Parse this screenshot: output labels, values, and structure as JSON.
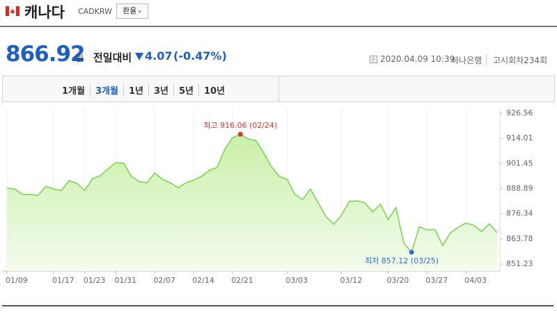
{
  "header": {
    "country": "캐나다",
    "code": "CADKRW",
    "button": "환율"
  },
  "quote": {
    "price": 866.92,
    "unit": "원",
    "change_label": "전일대비",
    "change": 4.07,
    "change_percent": "(-0.47%)",
    "datetime": "2020.04.09 10:39",
    "bank": "하나은행",
    "round": "고시회차234회"
  },
  "tabs": [
    "1개월",
    "3개월",
    "1년",
    "3년",
    "5년",
    "10년"
  ],
  "chart_data": {
    "type": "area",
    "categories": [
      "01/09",
      null,
      null,
      null,
      null,
      null,
      "01/17",
      null,
      null,
      null,
      "01/23",
      null,
      null,
      null,
      "01/31",
      null,
      null,
      null,
      null,
      "02/07",
      null,
      null,
      null,
      null,
      "02/14",
      null,
      null,
      null,
      null,
      "02/21",
      null,
      null,
      null,
      null,
      null,
      null,
      "03/03",
      null,
      null,
      null,
      null,
      null,
      null,
      "03/12",
      null,
      null,
      null,
      null,
      null,
      "03/20",
      null,
      null,
      null,
      null,
      "03/27",
      null,
      null,
      null,
      null,
      "04/03",
      null,
      null,
      null,
      null
    ],
    "values": [
      889.1,
      888.7,
      886.0,
      886.0,
      885.6,
      890.1,
      888.7,
      888.0,
      892.9,
      891.5,
      888.0,
      893.9,
      895.3,
      898.8,
      901.9,
      901.6,
      895.0,
      892.5,
      891.8,
      896.7,
      893.6,
      891.8,
      889.4,
      891.8,
      893.2,
      895.0,
      898.1,
      899.5,
      908.5,
      914.4,
      916.06,
      913.7,
      913.0,
      906.8,
      899.8,
      895.0,
      893.6,
      886.0,
      883.5,
      888.7,
      881.8,
      874.9,
      871.1,
      875.6,
      882.5,
      882.8,
      881.8,
      877.3,
      881.1,
      873.5,
      879.4,
      861.7,
      857.12,
      869.9,
      868.2,
      868.5,
      860.5,
      866.8,
      869.6,
      871.7,
      870.6,
      867.5,
      871.3,
      866.92
    ],
    "value_labels": [
      null,
      null,
      null,
      null,
      null,
      null,
      null,
      null,
      null,
      null,
      null,
      null,
      null,
      null,
      null,
      null,
      null,
      null,
      null,
      null,
      null,
      null,
      null,
      null,
      null,
      null,
      null,
      null,
      null,
      null,
      "최고 916.06 (02/24)",
      null,
      null,
      null,
      null,
      null,
      null,
      null,
      null,
      null,
      null,
      null,
      null,
      null,
      null,
      null,
      null,
      null,
      null,
      null,
      null,
      null,
      "최저 857.12 (03/25)",
      null,
      null,
      null,
      null,
      null,
      null,
      null,
      null,
      null,
      null,
      null
    ],
    "color": "#7fd357",
    "ylim": [
      851.23,
      926.56
    ],
    "yticks": [
      851.23,
      863.78,
      876.34,
      888.89,
      901.45,
      914.01,
      926.56
    ],
    "grid": true
  }
}
